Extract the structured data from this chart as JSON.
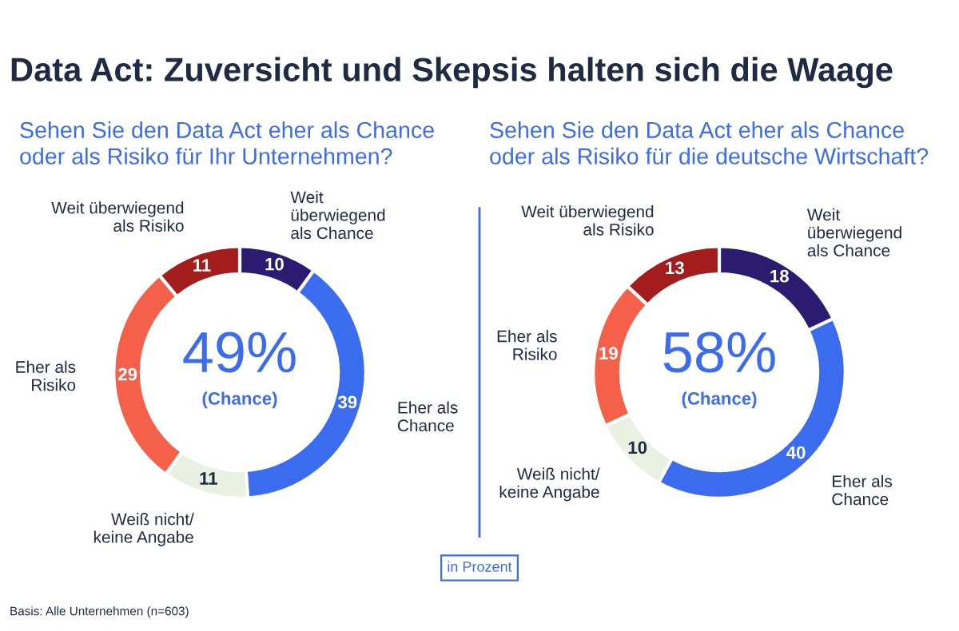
{
  "chart_data": [
    {
      "type": "donut",
      "title": "Data Act: Zuversicht und Skepsis halten sich die Waage",
      "subtitle": "Sehen Sie den Data Act eher als Chance\noder als Risiko für Ihr Unternehmen?",
      "categories": [
        "Weit\nüberwiegend\nals Chance",
        "Eher als\nChance",
        "Weiß nicht/\nkeine Angabe",
        "Eher als\nRisiko",
        "Weit überwiegend\nals Risiko"
      ],
      "values": [
        10,
        39,
        11,
        29,
        11
      ],
      "colors": [
        "#2b1c72",
        "#3b6cf0",
        "#e8f1e2",
        "#f4604a",
        "#a31d1d"
      ],
      "data_labels": true,
      "annotations": [
        "49%",
        "(Chance)",
        "in Prozent",
        "Basis: Alle Unternehmen (n=603)"
      ]
    },
    {
      "type": "donut",
      "subtitle": "Sehen Sie den Data Act eher als Chance\noder als Risiko für die deutsche Wirtschaft?",
      "categories": [
        "Weit\nüberwiegend\nals Chance",
        "Eher als\nChance",
        "Weiß nicht/\nkeine Angabe",
        "Eher als\nRisiko",
        "Weit überwiegend\nals Risiko"
      ],
      "values": [
        18,
        40,
        10,
        19,
        13
      ],
      "colors": [
        "#2b1c72",
        "#3b6cf0",
        "#e8f1e2",
        "#f4604a",
        "#a31d1d"
      ],
      "data_labels": true,
      "annotations": [
        "58%",
        "(Chance)"
      ]
    }
  ]
}
